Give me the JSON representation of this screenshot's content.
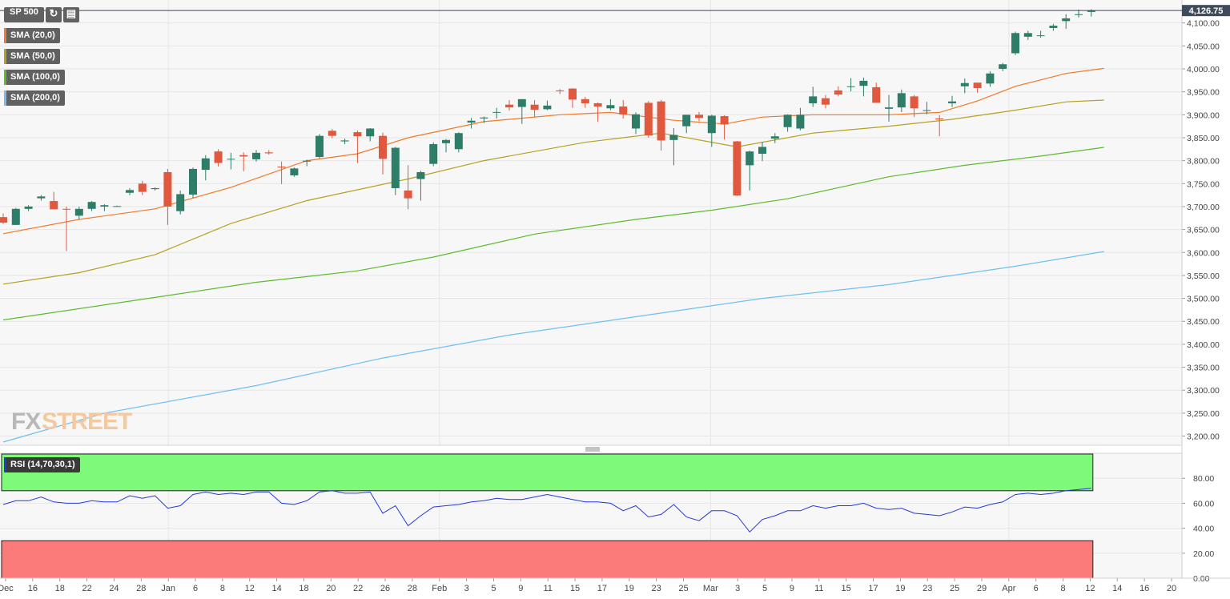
{
  "symbol": "SP 500",
  "last_price_label": "4,126.75",
  "icons": [
    "refresh-icon",
    "calendar-icon"
  ],
  "indicators": [
    {
      "label": "SMA (20,0)",
      "color": "#f07a2a"
    },
    {
      "label": "SMA (50,0)",
      "color": "#b5a020"
    },
    {
      "label": "SMA (100,0)",
      "color": "#5dbb2e"
    },
    {
      "label": "SMA (200,0)",
      "color": "#6ec0f0"
    }
  ],
  "rsi_label": "RSI (14,70,30,1)",
  "watermark": "FXSTREET",
  "colors": {
    "up": "#2e7d68",
    "down": "#e0583e",
    "rsi_line": "#2439d6",
    "overbought_zone": "#7ef97a",
    "oversold_zone": "#fb7b7b",
    "last_price_tag": "#3f4a5a"
  },
  "chart_data": [
    {
      "type": "candlestick",
      "title": "SP 500",
      "ylim": [
        3180,
        4150
      ],
      "yticks": [
        "4,100.00",
        "4,050.00",
        "4,000.00",
        "3,950.00",
        "3,900.00",
        "3,850.00",
        "3,800.00",
        "3,750.00",
        "3,700.00",
        "3,650.00",
        "3,600.00",
        "3,550.00",
        "3,500.00",
        "3,450.00",
        "3,400.00",
        "3,350.00",
        "3,300.00",
        "3,250.00",
        "3,200.00"
      ],
      "xtick_labels": [
        "Dec",
        "16",
        "18",
        "22",
        "24",
        "28",
        "Jan",
        "6",
        "8",
        "12",
        "14",
        "18",
        "20",
        "22",
        "26",
        "28",
        "Feb",
        "3",
        "5",
        "9",
        "11",
        "15",
        "17",
        "19",
        "23",
        "25",
        "Mar",
        "3",
        "5",
        "9",
        "11",
        "15",
        "17",
        "19",
        "23",
        "25",
        "29",
        "Apr",
        "6",
        "8",
        "12",
        "14",
        "16",
        "20"
      ],
      "candles": [
        {
          "o": 3677,
          "h": 3685,
          "l": 3662,
          "c": 3665
        },
        {
          "o": 3660,
          "h": 3697,
          "l": 3660,
          "c": 3695
        },
        {
          "o": 3695,
          "h": 3703,
          "l": 3690,
          "c": 3700
        },
        {
          "o": 3718,
          "h": 3725,
          "l": 3713,
          "c": 3722
        },
        {
          "o": 3712,
          "h": 3732,
          "l": 3702,
          "c": 3694
        },
        {
          "o": 3695,
          "h": 3700,
          "l": 3603,
          "c": 3694
        },
        {
          "o": 3680,
          "h": 3700,
          "l": 3672,
          "c": 3695
        },
        {
          "o": 3695,
          "h": 3712,
          "l": 3690,
          "c": 3710
        },
        {
          "o": 3700,
          "h": 3705,
          "l": 3690,
          "c": 3703
        },
        {
          "o": 3701,
          "h": 3702,
          "l": 3700,
          "c": 3701
        },
        {
          "o": 3730,
          "h": 3740,
          "l": 3725,
          "c": 3736
        },
        {
          "o": 3750,
          "h": 3756,
          "l": 3725,
          "c": 3732
        },
        {
          "o": 3738,
          "h": 3742,
          "l": 3735,
          "c": 3740
        },
        {
          "o": 3775,
          "h": 3782,
          "l": 3660,
          "c": 3700
        },
        {
          "o": 3690,
          "h": 3735,
          "l": 3683,
          "c": 3727
        },
        {
          "o": 3726,
          "h": 3785,
          "l": 3718,
          "c": 3782
        },
        {
          "o": 3780,
          "h": 3812,
          "l": 3757,
          "c": 3805
        },
        {
          "o": 3820,
          "h": 3825,
          "l": 3787,
          "c": 3795
        },
        {
          "o": 3803,
          "h": 3817,
          "l": 3781,
          "c": 3804
        },
        {
          "o": 3812,
          "h": 3818,
          "l": 3777,
          "c": 3809
        },
        {
          "o": 3803,
          "h": 3823,
          "l": 3798,
          "c": 3817
        },
        {
          "o": 3818,
          "h": 3823,
          "l": 3813,
          "c": 3816
        },
        {
          "o": 3787,
          "h": 3798,
          "l": 3749,
          "c": 3785
        },
        {
          "o": 3768,
          "h": 3785,
          "l": 3765,
          "c": 3783
        },
        {
          "o": 3798,
          "h": 3802,
          "l": 3788,
          "c": 3800
        },
        {
          "o": 3808,
          "h": 3858,
          "l": 3805,
          "c": 3854
        },
        {
          "o": 3865,
          "h": 3869,
          "l": 3849,
          "c": 3854
        },
        {
          "o": 3842,
          "h": 3848,
          "l": 3836,
          "c": 3844
        },
        {
          "o": 3862,
          "h": 3866,
          "l": 3795,
          "c": 3853
        },
        {
          "o": 3853,
          "h": 3871,
          "l": 3842,
          "c": 3870
        },
        {
          "o": 3854,
          "h": 3861,
          "l": 3770,
          "c": 3804
        },
        {
          "o": 3740,
          "h": 3830,
          "l": 3725,
          "c": 3828
        },
        {
          "o": 3735,
          "h": 3790,
          "l": 3694,
          "c": 3718
        },
        {
          "o": 3760,
          "h": 3778,
          "l": 3713,
          "c": 3775
        },
        {
          "o": 3793,
          "h": 3840,
          "l": 3788,
          "c": 3836
        },
        {
          "o": 3838,
          "h": 3847,
          "l": 3818,
          "c": 3845
        },
        {
          "o": 3825,
          "h": 3862,
          "l": 3818,
          "c": 3860
        },
        {
          "o": 3883,
          "h": 3893,
          "l": 3870,
          "c": 3887
        },
        {
          "o": 3892,
          "h": 3896,
          "l": 3882,
          "c": 3894
        },
        {
          "o": 3906,
          "h": 3915,
          "l": 3892,
          "c": 3906
        },
        {
          "o": 3922,
          "h": 3932,
          "l": 3909,
          "c": 3916
        },
        {
          "o": 3917,
          "h": 3934,
          "l": 3880,
          "c": 3934
        },
        {
          "o": 3922,
          "h": 3932,
          "l": 3895,
          "c": 3911
        },
        {
          "o": 3912,
          "h": 3931,
          "l": 3910,
          "c": 3920
        },
        {
          "o": 3953,
          "h": 3956,
          "l": 3945,
          "c": 3952
        },
        {
          "o": 3957,
          "h": 3958,
          "l": 3915,
          "c": 3933
        },
        {
          "o": 3934,
          "h": 3939,
          "l": 3915,
          "c": 3925
        },
        {
          "o": 3925,
          "h": 3927,
          "l": 3885,
          "c": 3918
        },
        {
          "o": 3914,
          "h": 3934,
          "l": 3910,
          "c": 3921
        },
        {
          "o": 3918,
          "h": 3932,
          "l": 3892,
          "c": 3901
        },
        {
          "o": 3870,
          "h": 3905,
          "l": 3858,
          "c": 3901
        },
        {
          "o": 3926,
          "h": 3930,
          "l": 3850,
          "c": 3855
        },
        {
          "o": 3929,
          "h": 3932,
          "l": 3822,
          "c": 3844
        },
        {
          "o": 3845,
          "h": 3871,
          "l": 3790,
          "c": 3856
        },
        {
          "o": 3875,
          "h": 3900,
          "l": 3860,
          "c": 3900
        },
        {
          "o": 3900,
          "h": 3906,
          "l": 3886,
          "c": 3893
        },
        {
          "o": 3860,
          "h": 3900,
          "l": 3830,
          "c": 3898
        },
        {
          "o": 3897,
          "h": 3899,
          "l": 3846,
          "c": 3879
        },
        {
          "o": 3842,
          "h": 3843,
          "l": 3723,
          "c": 3724
        },
        {
          "o": 3790,
          "h": 3822,
          "l": 3735,
          "c": 3820
        },
        {
          "o": 3815,
          "h": 3841,
          "l": 3799,
          "c": 3830
        },
        {
          "o": 3848,
          "h": 3860,
          "l": 3838,
          "c": 3853
        },
        {
          "o": 3873,
          "h": 3901,
          "l": 3863,
          "c": 3900
        },
        {
          "o": 3870,
          "h": 3915,
          "l": 3866,
          "c": 3900
        },
        {
          "o": 3925,
          "h": 3961,
          "l": 3917,
          "c": 3940
        },
        {
          "o": 3936,
          "h": 3943,
          "l": 3914,
          "c": 3922
        },
        {
          "o": 3953,
          "h": 3962,
          "l": 3940,
          "c": 3944
        },
        {
          "o": 3961,
          "h": 3980,
          "l": 3951,
          "c": 3962
        },
        {
          "o": 3963,
          "h": 3981,
          "l": 3940,
          "c": 3974
        },
        {
          "o": 3960,
          "h": 3970,
          "l": 3931,
          "c": 3926
        },
        {
          "o": 3913,
          "h": 3943,
          "l": 3885,
          "c": 3916
        },
        {
          "o": 3916,
          "h": 3955,
          "l": 3906,
          "c": 3947
        },
        {
          "o": 3940,
          "h": 3943,
          "l": 3895,
          "c": 3914
        },
        {
          "o": 3910,
          "h": 3928,
          "l": 3901,
          "c": 3910
        },
        {
          "o": 3892,
          "h": 3899,
          "l": 3853,
          "c": 3890
        },
        {
          "o": 3925,
          "h": 3941,
          "l": 3917,
          "c": 3929
        },
        {
          "o": 3962,
          "h": 3979,
          "l": 3947,
          "c": 3969
        },
        {
          "o": 3970,
          "h": 3970,
          "l": 3948,
          "c": 3958
        },
        {
          "o": 3968,
          "h": 3995,
          "l": 3961,
          "c": 3990
        },
        {
          "o": 4000,
          "h": 4013,
          "l": 3995,
          "c": 4010
        },
        {
          "o": 4034,
          "h": 4081,
          "l": 4030,
          "c": 4078
        },
        {
          "o": 4070,
          "h": 4083,
          "l": 4063,
          "c": 4078
        },
        {
          "o": 4072,
          "h": 4083,
          "l": 4068,
          "c": 4073
        },
        {
          "o": 4089,
          "h": 4098,
          "l": 4083,
          "c": 4094
        },
        {
          "o": 4104,
          "h": 4119,
          "l": 4087,
          "c": 4110
        },
        {
          "o": 4118,
          "h": 4129,
          "l": 4112,
          "c": 4119
        },
        {
          "o": 4124,
          "h": 4130,
          "l": 4114,
          "c": 4127
        }
      ],
      "sma": {
        "SMA (20,0)": [
          [
            0,
            3641
          ],
          [
            6,
            3672
          ],
          [
            12,
            3695
          ],
          [
            18,
            3742
          ],
          [
            24,
            3800
          ],
          [
            28,
            3815
          ],
          [
            32,
            3850
          ],
          [
            38,
            3885
          ],
          [
            44,
            3900
          ],
          [
            48,
            3905
          ],
          [
            53,
            3888
          ],
          [
            57,
            3880
          ],
          [
            60,
            3895
          ],
          [
            64,
            3900
          ],
          [
            70,
            3900
          ],
          [
            74,
            3905
          ],
          [
            77,
            3930
          ],
          [
            80,
            3962
          ],
          [
            84,
            3990
          ],
          [
            87,
            4001
          ]
        ],
        "SMA (50,0)": [
          [
            0,
            3531
          ],
          [
            6,
            3556
          ],
          [
            12,
            3595
          ],
          [
            18,
            3663
          ],
          [
            24,
            3713
          ],
          [
            32,
            3760
          ],
          [
            38,
            3800
          ],
          [
            46,
            3840
          ],
          [
            52,
            3860
          ],
          [
            58,
            3830
          ],
          [
            64,
            3860
          ],
          [
            70,
            3875
          ],
          [
            75,
            3890
          ],
          [
            80,
            3910
          ],
          [
            84,
            3928
          ],
          [
            87,
            3932
          ]
        ],
        "SMA (100,0)": [
          [
            0,
            3453
          ],
          [
            12,
            3502
          ],
          [
            20,
            3535
          ],
          [
            28,
            3560
          ],
          [
            34,
            3590
          ],
          [
            42,
            3640
          ],
          [
            50,
            3672
          ],
          [
            56,
            3692
          ],
          [
            62,
            3717
          ],
          [
            70,
            3765
          ],
          [
            76,
            3790
          ],
          [
            82,
            3810
          ],
          [
            87,
            3829
          ]
        ],
        "SMA (200,0)": [
          [
            0,
            3187
          ],
          [
            8,
            3250
          ],
          [
            20,
            3310
          ],
          [
            30,
            3370
          ],
          [
            40,
            3420
          ],
          [
            50,
            3460
          ],
          [
            60,
            3500
          ],
          [
            70,
            3530
          ],
          [
            80,
            3570
          ],
          [
            87,
            3602
          ]
        ]
      }
    },
    {
      "type": "line",
      "title": "RSI (14,70,30,1)",
      "ylim": [
        0,
        100
      ],
      "yticks": [
        "80.00",
        "60.00",
        "40.00",
        "20.00",
        "0.00"
      ],
      "overbought": 70,
      "oversold": 30,
      "values": [
        59,
        62,
        62,
        65,
        61,
        60,
        60,
        62,
        61,
        61,
        66,
        64,
        66,
        56,
        58,
        67,
        69,
        67,
        68,
        67,
        69,
        69,
        60,
        59,
        62,
        69,
        70,
        68,
        68,
        69,
        52,
        58,
        42,
        50,
        57,
        58,
        59,
        61,
        62,
        64,
        63,
        63,
        65,
        67,
        65,
        63,
        61,
        61,
        60,
        54,
        58,
        49,
        51,
        59,
        49,
        46,
        54,
        54,
        50,
        37,
        47,
        50,
        54,
        54,
        58,
        56,
        58,
        58,
        60,
        56,
        55,
        56,
        52,
        51,
        50,
        53,
        57,
        56,
        59,
        61,
        67,
        68,
        67,
        68,
        70,
        71,
        72
      ]
    }
  ]
}
